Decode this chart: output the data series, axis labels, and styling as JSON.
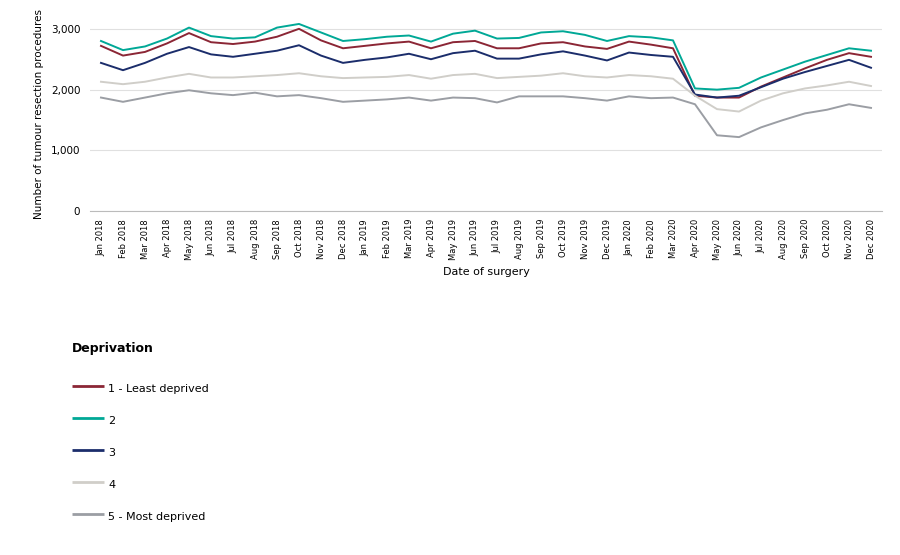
{
  "x_labels": [
    "Jan 2018",
    "Feb 2018",
    "Mar 2018",
    "Apr 2018",
    "May 2018",
    "Jun 2018",
    "Jul 2018",
    "Aug 2018",
    "Sep 2018",
    "Oct 2018",
    "Nov 2018",
    "Dec 2018",
    "Jan 2019",
    "Feb 2019",
    "Mar 2019",
    "Apr 2019",
    "May 2019",
    "Jun 2019",
    "Jul 2019",
    "Aug 2019",
    "Sep 2019",
    "Oct 2019",
    "Nov 2019",
    "Dec 2019",
    "Jan 2020",
    "Feb 2020",
    "Mar 2020",
    "Apr 2020",
    "May 2020",
    "Jun 2020",
    "Jul 2020",
    "Aug 2020",
    "Sep 2020",
    "Oct 2020",
    "Nov 2020",
    "Dec 2020"
  ],
  "series": [
    {
      "name": "1 - Least deprived",
      "color": "#8B2635",
      "linewidth": 1.4,
      "values": [
        2720,
        2560,
        2620,
        2760,
        2930,
        2780,
        2750,
        2790,
        2870,
        3000,
        2810,
        2680,
        2720,
        2760,
        2790,
        2680,
        2780,
        2800,
        2680,
        2680,
        2760,
        2780,
        2710,
        2670,
        2790,
        2740,
        2680,
        1900,
        1870,
        1870,
        2050,
        2200,
        2350,
        2490,
        2600,
        2540
      ]
    },
    {
      "name": "2",
      "color": "#00A896",
      "linewidth": 1.4,
      "values": [
        2800,
        2650,
        2710,
        2840,
        3020,
        2880,
        2840,
        2860,
        3020,
        3080,
        2940,
        2800,
        2830,
        2870,
        2890,
        2790,
        2920,
        2970,
        2840,
        2850,
        2940,
        2960,
        2900,
        2800,
        2880,
        2860,
        2810,
        2020,
        2000,
        2030,
        2200,
        2330,
        2460,
        2570,
        2680,
        2640
      ]
    },
    {
      "name": "3",
      "color": "#1B2D6B",
      "linewidth": 1.4,
      "values": [
        2440,
        2320,
        2440,
        2590,
        2700,
        2580,
        2540,
        2590,
        2640,
        2730,
        2560,
        2440,
        2490,
        2530,
        2590,
        2500,
        2600,
        2640,
        2510,
        2510,
        2580,
        2630,
        2560,
        2480,
        2610,
        2570,
        2540,
        1920,
        1870,
        1900,
        2040,
        2180,
        2290,
        2390,
        2490,
        2360
      ]
    },
    {
      "name": "4",
      "color": "#D0CEC9",
      "linewidth": 1.4,
      "values": [
        2130,
        2090,
        2130,
        2200,
        2260,
        2200,
        2200,
        2220,
        2240,
        2270,
        2220,
        2190,
        2200,
        2210,
        2240,
        2180,
        2240,
        2260,
        2190,
        2210,
        2230,
        2270,
        2220,
        2200,
        2240,
        2220,
        2180,
        1900,
        1680,
        1640,
        1820,
        1940,
        2020,
        2070,
        2130,
        2060
      ]
    },
    {
      "name": "5 - Most deprived",
      "color": "#9B9EA4",
      "linewidth": 1.4,
      "values": [
        1870,
        1800,
        1870,
        1940,
        1990,
        1940,
        1910,
        1950,
        1890,
        1910,
        1860,
        1800,
        1820,
        1840,
        1870,
        1820,
        1870,
        1860,
        1790,
        1890,
        1890,
        1890,
        1860,
        1820,
        1890,
        1860,
        1870,
        1760,
        1250,
        1220,
        1380,
        1500,
        1610,
        1670,
        1760,
        1700
      ]
    }
  ],
  "ylabel": "Number of tumour resection procedures",
  "xlabel": "Date of surgery",
  "ylim": [
    0,
    3200
  ],
  "yticks": [
    0,
    1000,
    2000,
    3000
  ],
  "ytick_labels": [
    "0",
    "1,000",
    "2,000",
    "3,000"
  ],
  "legend_title": "Deprivation",
  "background_color": "#ffffff",
  "grid_color": "#e0e0e0"
}
